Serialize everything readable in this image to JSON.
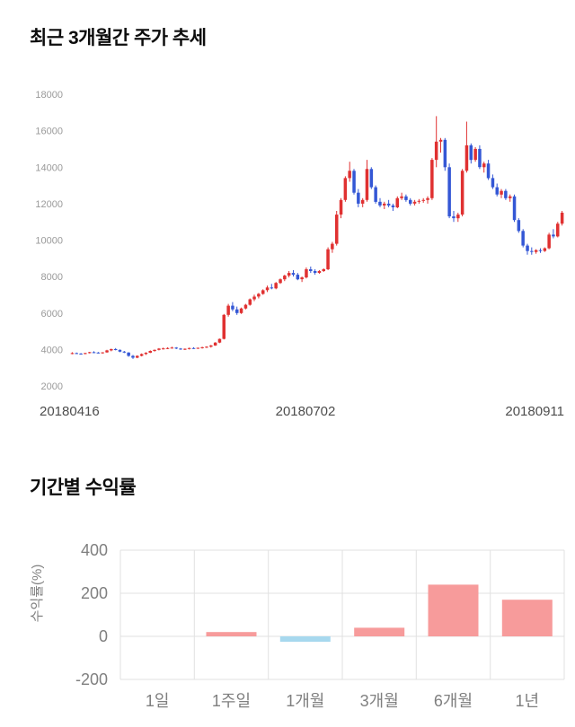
{
  "price_chart": {
    "title": "최근 3개월간 주가 추세"
  },
  "returns_chart": {
    "title": "기간별 수익률"
  },
  "chart_data": [
    {
      "type": "candlestick",
      "title": "최근 3개월간 주가 추세",
      "ylim": [
        2000,
        18000
      ],
      "yticks": [
        2000,
        4000,
        6000,
        8000,
        10000,
        12000,
        14000,
        16000,
        18000
      ],
      "x_labels": [
        "20180416",
        "20180702",
        "20180911"
      ],
      "up_color": "#e03131",
      "down_color": "#3457d5",
      "grid": false,
      "candles": [
        [
          3780,
          3850,
          3740,
          3800
        ],
        [
          3800,
          3830,
          3750,
          3770
        ],
        [
          3770,
          3800,
          3720,
          3750
        ],
        [
          3750,
          3820,
          3740,
          3800
        ],
        [
          3800,
          3870,
          3780,
          3850
        ],
        [
          3850,
          3900,
          3800,
          3830
        ],
        [
          3830,
          3860,
          3780,
          3800
        ],
        [
          3800,
          3850,
          3770,
          3840
        ],
        [
          3840,
          3980,
          3820,
          3950
        ],
        [
          3950,
          4050,
          3900,
          4020
        ],
        [
          4020,
          4080,
          3950,
          3980
        ],
        [
          3980,
          4000,
          3850,
          3880
        ],
        [
          3880,
          3920,
          3800,
          3830
        ],
        [
          3830,
          3850,
          3600,
          3650
        ],
        [
          3650,
          3700,
          3480,
          3550
        ],
        [
          3550,
          3680,
          3520,
          3650
        ],
        [
          3650,
          3780,
          3620,
          3750
        ],
        [
          3750,
          3850,
          3700,
          3820
        ],
        [
          3820,
          3950,
          3800,
          3920
        ],
        [
          3920,
          4000,
          3880,
          3980
        ],
        [
          3980,
          4080,
          3950,
          4050
        ],
        [
          4050,
          4100,
          4000,
          4060
        ],
        [
          4060,
          4120,
          4020,
          4080
        ],
        [
          4080,
          4150,
          4050,
          4100
        ],
        [
          4100,
          4130,
          4020,
          4050
        ],
        [
          4050,
          4080,
          3980,
          4000
        ],
        [
          4000,
          4060,
          3970,
          4040
        ],
        [
          4040,
          4100,
          4000,
          4080
        ],
        [
          4080,
          4120,
          4040,
          4060
        ],
        [
          4060,
          4100,
          4030,
          4090
        ],
        [
          4090,
          4150,
          4050,
          4120
        ],
        [
          4120,
          4180,
          4080,
          4150
        ],
        [
          4150,
          4250,
          4100,
          4220
        ],
        [
          4220,
          4400,
          4200,
          4380
        ],
        [
          4380,
          4600,
          4350,
          4580
        ],
        [
          4580,
          5950,
          4550,
          5900
        ],
        [
          5900,
          6500,
          5800,
          6400
        ],
        [
          6400,
          6600,
          6100,
          6200
        ],
        [
          6200,
          6350,
          5900,
          6000
        ],
        [
          6000,
          6300,
          5950,
          6250
        ],
        [
          6250,
          6500,
          6200,
          6450
        ],
        [
          6450,
          6800,
          6400,
          6750
        ],
        [
          6750,
          7000,
          6650,
          6900
        ],
        [
          6900,
          7100,
          6800,
          7050
        ],
        [
          7050,
          7300,
          7000,
          7250
        ],
        [
          7250,
          7500,
          7150,
          7400
        ],
        [
          7400,
          7600,
          7300,
          7350
        ],
        [
          7350,
          7700,
          7300,
          7650
        ],
        [
          7650,
          7900,
          7600,
          7850
        ],
        [
          7850,
          8100,
          7750,
          8050
        ],
        [
          8050,
          8300,
          7950,
          8200
        ],
        [
          8200,
          8350,
          8000,
          8100
        ],
        [
          8100,
          8200,
          7800,
          7850
        ],
        [
          7850,
          8000,
          7700,
          7950
        ],
        [
          7950,
          8500,
          7900,
          8400
        ],
        [
          8400,
          8550,
          8200,
          8300
        ],
        [
          8300,
          8400,
          8100,
          8200
        ],
        [
          8200,
          8350,
          8150,
          8300
        ],
        [
          8300,
          8450,
          8250,
          8400
        ],
        [
          8400,
          9600,
          8350,
          9500
        ],
        [
          9500,
          9900,
          9300,
          9800
        ],
        [
          9800,
          11600,
          9700,
          11400
        ],
        [
          11400,
          12300,
          11200,
          12200
        ],
        [
          12200,
          13500,
          12100,
          13400
        ],
        [
          13400,
          14300,
          13200,
          13800
        ],
        [
          13800,
          13900,
          12500,
          12600
        ],
        [
          12600,
          12800,
          11800,
          12000
        ],
        [
          12000,
          12300,
          11800,
          12200
        ],
        [
          12200,
          14400,
          12100,
          13900
        ],
        [
          13900,
          14000,
          12800,
          12900
        ],
        [
          12900,
          13000,
          12000,
          12100
        ],
        [
          12100,
          12300,
          11800,
          11900
        ],
        [
          11900,
          12100,
          11700,
          12000
        ],
        [
          12000,
          12200,
          11800,
          11900
        ],
        [
          11900,
          12000,
          11600,
          11800
        ],
        [
          11800,
          12400,
          11750,
          12300
        ],
        [
          12300,
          12600,
          12200,
          12400
        ],
        [
          12400,
          12500,
          12100,
          12200
        ],
        [
          12200,
          12300,
          11900,
          12000
        ],
        [
          12000,
          12200,
          11900,
          12100
        ],
        [
          12100,
          12250,
          12000,
          12150
        ],
        [
          12150,
          12300,
          12050,
          12200
        ],
        [
          12200,
          12400,
          12000,
          12300
        ],
        [
          12300,
          14500,
          12200,
          14400
        ],
        [
          14400,
          16800,
          14000,
          15400
        ],
        [
          15400,
          15600,
          14800,
          15500
        ],
        [
          15500,
          15600,
          13800,
          14000
        ],
        [
          14000,
          14200,
          11200,
          11300
        ],
        [
          11300,
          11600,
          11000,
          11200
        ],
        [
          11200,
          11500,
          11000,
          11400
        ],
        [
          11400,
          13900,
          11300,
          13800
        ],
        [
          13800,
          16500,
          13700,
          15200
        ],
        [
          15200,
          15300,
          14200,
          14400
        ],
        [
          14400,
          15100,
          14300,
          15000
        ],
        [
          15000,
          15200,
          13900,
          14000
        ],
        [
          14000,
          14300,
          13700,
          14200
        ],
        [
          14200,
          14400,
          13300,
          13400
        ],
        [
          13400,
          13600,
          12800,
          12900
        ],
        [
          12900,
          13100,
          12400,
          12500
        ],
        [
          12500,
          12800,
          12300,
          12700
        ],
        [
          12700,
          12800,
          12200,
          12300
        ],
        [
          12300,
          12500,
          12100,
          12400
        ],
        [
          12400,
          12500,
          11000,
          11100
        ],
        [
          11100,
          11200,
          10400,
          10500
        ],
        [
          10500,
          10600,
          9600,
          9700
        ],
        [
          9700,
          9800,
          9200,
          9400
        ],
        [
          9400,
          9600,
          9200,
          9350
        ],
        [
          9350,
          9500,
          9250,
          9450
        ],
        [
          9450,
          9550,
          9300,
          9400
        ],
        [
          9400,
          9600,
          9350,
          9550
        ],
        [
          9550,
          10400,
          9500,
          10300
        ],
        [
          10300,
          10600,
          10100,
          10200
        ],
        [
          10200,
          11000,
          10150,
          10900
        ],
        [
          10900,
          11600,
          10800,
          11500
        ]
      ]
    },
    {
      "type": "bar",
      "title": "기간별 수익률",
      "ylabel": "수익률(%)",
      "categories": [
        "1일",
        "1주일",
        "1개월",
        "3개월",
        "6개월",
        "1년"
      ],
      "values": [
        0,
        20,
        -25,
        40,
        240,
        170
      ],
      "ylim": [
        -200,
        400
      ],
      "yticks": [
        400,
        200,
        0,
        -200
      ],
      "positive_color": "#f79b9b",
      "negative_color": "#a7d8ee",
      "grid": true,
      "legend": "none"
    }
  ]
}
